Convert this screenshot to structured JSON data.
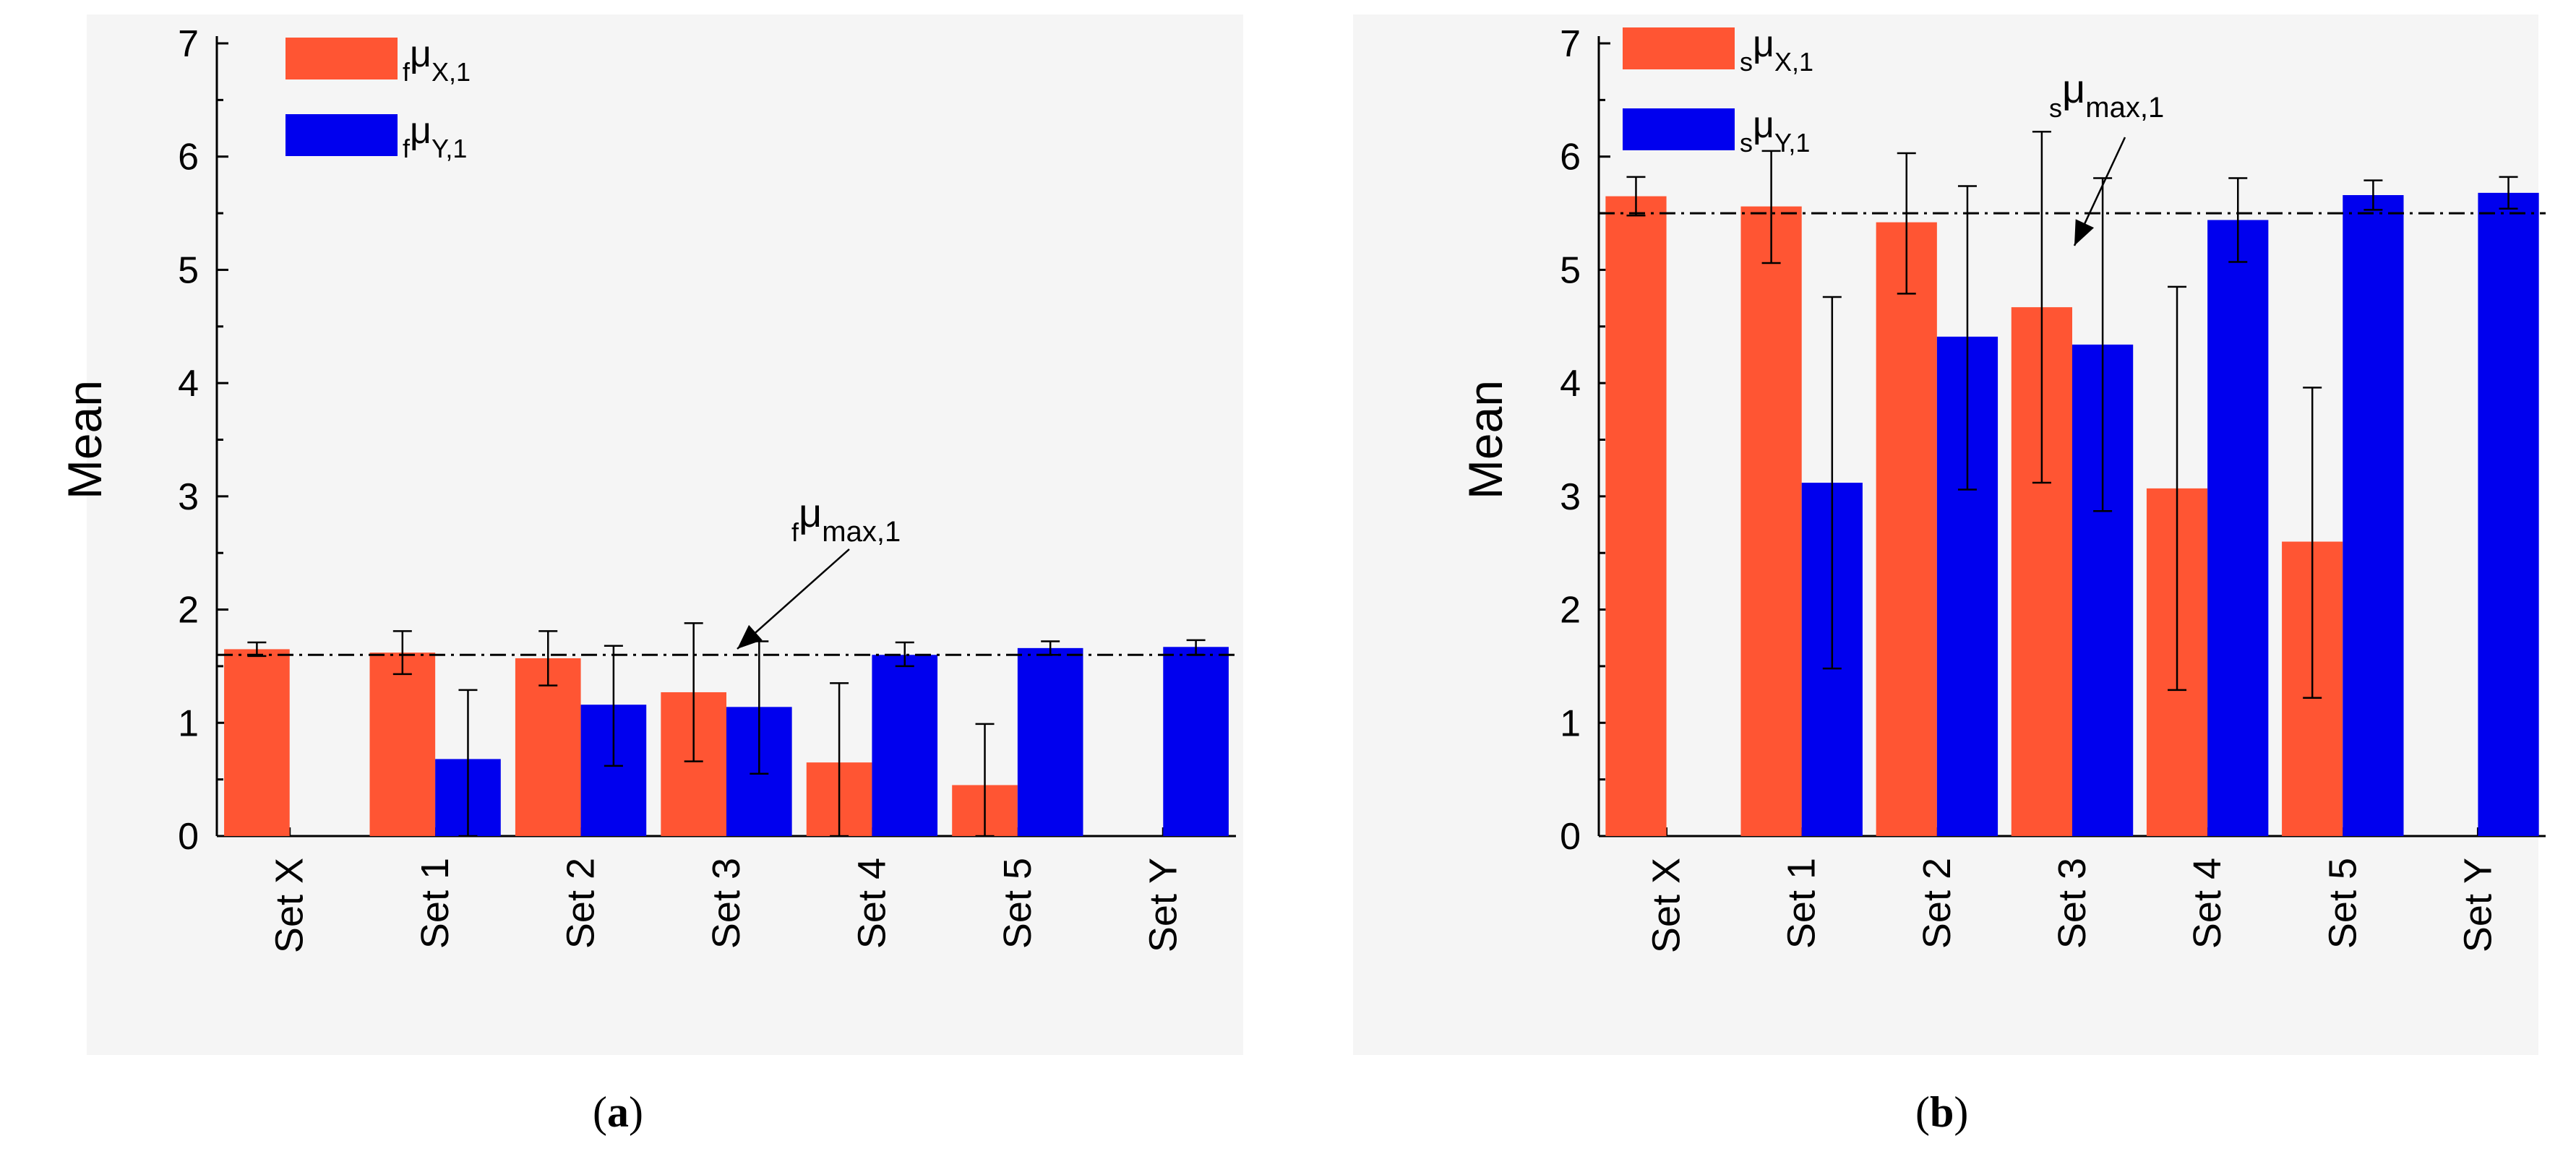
{
  "colors": {
    "x_series": "#ff5533",
    "y_series": "#0000ee",
    "line": "#000000"
  },
  "panels": [
    {
      "caption": "a",
      "chart_data": {
        "type": "bar",
        "categories": [
          "Set X",
          "Set 1",
          "Set 2",
          "Set 3",
          "Set 4",
          "Set 5",
          "Set Y"
        ],
        "ylabel": "Mean",
        "ylim": [
          0,
          7
        ],
        "yticks": [
          "0",
          "1",
          "2",
          "3",
          "4",
          "5",
          "6",
          "7"
        ],
        "series": [
          {
            "name_prefix": "f",
            "name_base": "μ",
            "name_sub": "X,1",
            "color": "#ff5533",
            "values": [
              1.65,
              1.62,
              1.57,
              1.27,
              0.65,
              0.45,
              null
            ],
            "err_low": [
              1.59,
              1.43,
              1.33,
              0.66,
              0.0,
              0.0,
              null
            ],
            "err_high": [
              1.71,
              1.81,
              1.81,
              1.88,
              1.35,
              0.99,
              null
            ]
          },
          {
            "name_prefix": "f",
            "name_base": "μ",
            "name_sub": "Y,1",
            "color": "#0000ee",
            "values": [
              null,
              0.68,
              1.16,
              1.14,
              1.6,
              1.66,
              1.67
            ],
            "err_low": [
              null,
              0.0,
              0.62,
              0.55,
              1.5,
              1.6,
              1.6
            ],
            "err_high": [
              null,
              1.29,
              1.68,
              1.72,
              1.71,
              1.72,
              1.73
            ]
          }
        ],
        "reference_line": {
          "value": 1.6,
          "label_prefix": "f",
          "label_base": "μ",
          "label_sub": "max,1"
        },
        "grid": false,
        "legend": "top-left"
      }
    },
    {
      "caption": "b",
      "chart_data": {
        "type": "bar",
        "categories": [
          "Set X",
          "Set 1",
          "Set 2",
          "Set 3",
          "Set 4",
          "Set 5",
          "Set Y"
        ],
        "ylabel": "Mean",
        "ylim": [
          0,
          7
        ],
        "yticks": [
          "0",
          "1",
          "2",
          "3",
          "4",
          "5",
          "6",
          "7"
        ],
        "series": [
          {
            "name_prefix": "s",
            "name_base": "μ",
            "name_sub": "X,1",
            "color": "#ff5533",
            "values": [
              5.65,
              5.56,
              5.42,
              4.67,
              3.07,
              2.6,
              null
            ],
            "err_low": [
              5.48,
              5.06,
              4.79,
              3.12,
              1.29,
              1.22,
              null
            ],
            "err_high": [
              5.82,
              6.05,
              6.03,
              6.22,
              4.85,
              3.96,
              null
            ]
          },
          {
            "name_prefix": "s",
            "name_base": "μ",
            "name_sub": "Y,1",
            "color": "#0000ee",
            "values": [
              null,
              3.12,
              4.41,
              4.34,
              5.44,
              5.66,
              5.68
            ],
            "err_low": [
              null,
              1.48,
              3.06,
              2.87,
              5.07,
              5.53,
              5.54
            ],
            "err_high": [
              null,
              4.76,
              5.74,
              5.81,
              5.81,
              5.79,
              5.82
            ]
          }
        ],
        "reference_line": {
          "value": 5.5,
          "label_prefix": "s",
          "label_base": "μ",
          "label_sub": "max,1"
        },
        "grid": false,
        "legend": "top-left"
      }
    }
  ]
}
